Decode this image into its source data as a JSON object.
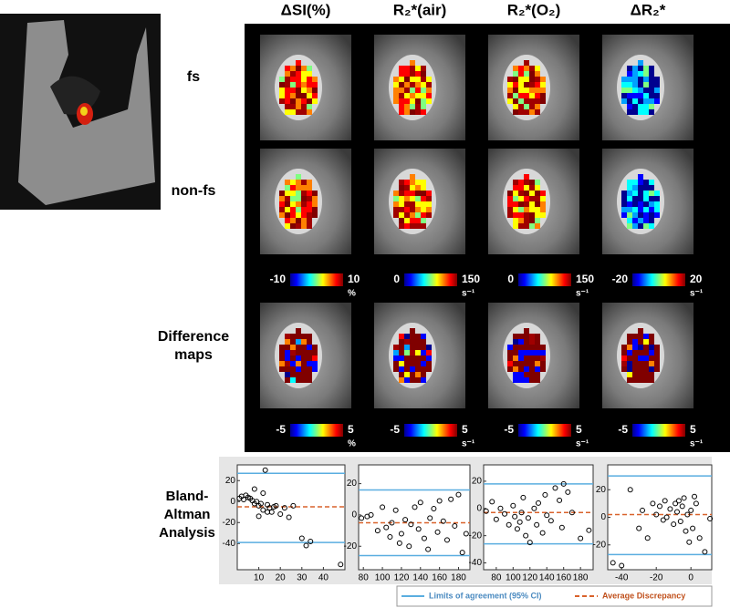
{
  "columns": [
    "ΔSI(%)",
    "R₂*(air)",
    "R₂*(O₂)",
    "ΔR₂*"
  ],
  "rows": [
    [
      "fs"
    ],
    [
      "non-fs"
    ],
    [
      "Difference",
      "maps"
    ]
  ],
  "colorbars": [
    [
      {
        "min": -10,
        "max": 10,
        "unit": "%"
      },
      {
        "min": 0,
        "max": 150,
        "unit": "s⁻¹"
      },
      {
        "min": 0,
        "max": 150,
        "unit": "s⁻¹"
      },
      {
        "min": -20,
        "max": 20,
        "unit": "s⁻¹"
      }
    ],
    [
      {
        "min": -5,
        "max": 5,
        "unit": "%"
      },
      {
        "min": -5,
        "max": 5,
        "unit": "s⁻¹"
      },
      {
        "min": -5,
        "max": 5,
        "unit": "s⁻¹"
      },
      {
        "min": -5,
        "max": 5,
        "unit": "s⁻¹"
      }
    ]
  ],
  "analysis_label": [
    "Bland-",
    "Altman",
    "Analysis"
  ],
  "legend": {
    "limits": "Limits of agreement (95% CI)",
    "limits_color": "#5aaee0",
    "mean": "Average Discrepancy",
    "mean_color": "#d9622b"
  },
  "chart_data": [
    {
      "type": "scatter",
      "x": [
        1,
        2,
        3,
        4,
        5,
        6,
        7,
        8,
        9,
        10,
        11,
        12,
        13,
        14,
        15,
        16,
        17,
        18,
        20,
        22,
        24,
        26,
        8,
        10,
        12,
        14,
        30,
        32,
        34,
        48
      ],
      "y": [
        3,
        5,
        2,
        6,
        4,
        3,
        1,
        -2,
        0,
        -4,
        -2,
        8,
        30,
        -3,
        -6,
        -10,
        -5,
        -4,
        -12,
        -6,
        -15,
        -4,
        12,
        -14,
        -8,
        -10,
        -35,
        -42,
        -38,
        -60
      ],
      "xlim": [
        0,
        50
      ],
      "xticks": [
        10,
        20,
        30,
        40
      ],
      "ylim": [
        -65,
        35
      ],
      "yticks": [
        -40,
        -20,
        0,
        20
      ],
      "limits_of_agreement": [
        27,
        -39
      ],
      "average_discrepancy": -5
    },
    {
      "type": "scatter",
      "x": [
        78,
        84,
        88,
        95,
        100,
        104,
        108,
        110,
        114,
        118,
        120,
        124,
        128,
        130,
        134,
        138,
        140,
        144,
        148,
        150,
        154,
        158,
        160,
        164,
        168,
        172,
        176,
        180,
        184,
        188
      ],
      "y": [
        -2,
        -1,
        0,
        -10,
        5,
        -8,
        -14,
        -5,
        3,
        -18,
        -12,
        -3,
        -20,
        -6,
        5,
        -9,
        8,
        -15,
        -22,
        -2,
        4,
        -11,
        9,
        -4,
        -16,
        10,
        -7,
        13,
        -24,
        -12
      ],
      "xlim": [
        75,
        192
      ],
      "xticks": [
        80,
        100,
        120,
        140,
        160,
        180
      ],
      "ylim": [
        -35,
        32
      ],
      "yticks": [
        -20,
        0,
        20
      ],
      "limits_of_agreement": [
        16,
        -26
      ],
      "average_discrepancy": -5
    },
    {
      "type": "scatter",
      "x": [
        68,
        75,
        80,
        85,
        90,
        95,
        100,
        102,
        105,
        108,
        110,
        112,
        115,
        118,
        120,
        125,
        128,
        130,
        135,
        138,
        140,
        145,
        150,
        155,
        158,
        160,
        165,
        170,
        180,
        190
      ],
      "y": [
        -2,
        5,
        -8,
        0,
        -4,
        -12,
        2,
        -6,
        -15,
        -10,
        -3,
        8,
        -20,
        -7,
        -25,
        0,
        -12,
        4,
        -18,
        10,
        -5,
        -9,
        15,
        6,
        -14,
        18,
        12,
        -3,
        -22,
        -16
      ],
      "xlim": [
        65,
        195
      ],
      "xticks": [
        80,
        100,
        120,
        140,
        160,
        180
      ],
      "ylim": [
        -45,
        32
      ],
      "yticks": [
        -40,
        -20,
        0,
        20
      ],
      "limits_of_agreement": [
        18,
        -26
      ],
      "average_discrepancy": -3
    },
    {
      "type": "scatter",
      "x": [
        -45,
        -40,
        -35,
        -30,
        -28,
        -25,
        -22,
        -20,
        -18,
        -16,
        -15,
        -14,
        -12,
        -10,
        -9,
        -8,
        -7,
        -6,
        -5,
        -4,
        -3,
        -2,
        -1,
        0,
        1,
        2,
        3,
        5,
        8,
        11
      ],
      "y": [
        -33,
        -35,
        20,
        -8,
        5,
        -15,
        10,
        2,
        8,
        -2,
        12,
        0,
        6,
        -5,
        10,
        4,
        12,
        -3,
        8,
        14,
        -10,
        2,
        -18,
        5,
        -8,
        15,
        10,
        -15,
        -25,
        -1
      ],
      "xlim": [
        -48,
        12
      ],
      "xticks": [
        -40,
        -20,
        0
      ],
      "ylim": [
        -38,
        38
      ],
      "yticks": [
        -20,
        0,
        20
      ],
      "limits_of_agreement": [
        30,
        -27
      ],
      "average_discrepancy": 2
    }
  ]
}
